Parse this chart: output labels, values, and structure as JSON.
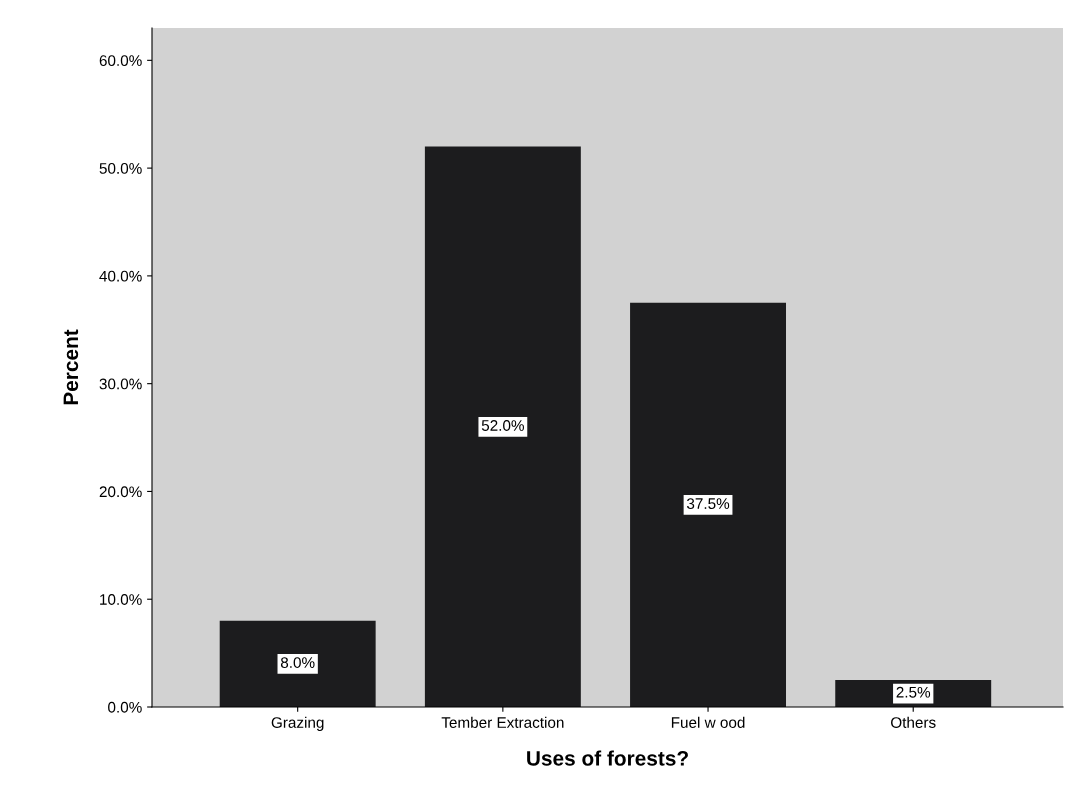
{
  "chart_data": {
    "type": "bar",
    "xlabel": "Uses of forests?",
    "ylabel": "Percent",
    "categories": [
      "Grazing",
      "Tember Extraction",
      "Fuel w ood",
      "Others"
    ],
    "values": [
      8.0,
      52.0,
      37.5,
      2.5
    ],
    "value_labels": [
      "8.0%",
      "52.0%",
      "37.5%",
      "2.5%"
    ],
    "color": "#1c1c1e",
    "ylim": [
      0,
      63
    ],
    "yticks": [
      {
        "value": 0,
        "label": "0.0%"
      },
      {
        "value": 10,
        "label": "10.0%"
      },
      {
        "value": 20,
        "label": "20.0%"
      },
      {
        "value": 30,
        "label": "30.0%"
      },
      {
        "value": 40,
        "label": "40.0%"
      },
      {
        "value": 50,
        "label": "50.0%"
      },
      {
        "value": 60,
        "label": "60.0%"
      }
    ],
    "grid": false
  }
}
